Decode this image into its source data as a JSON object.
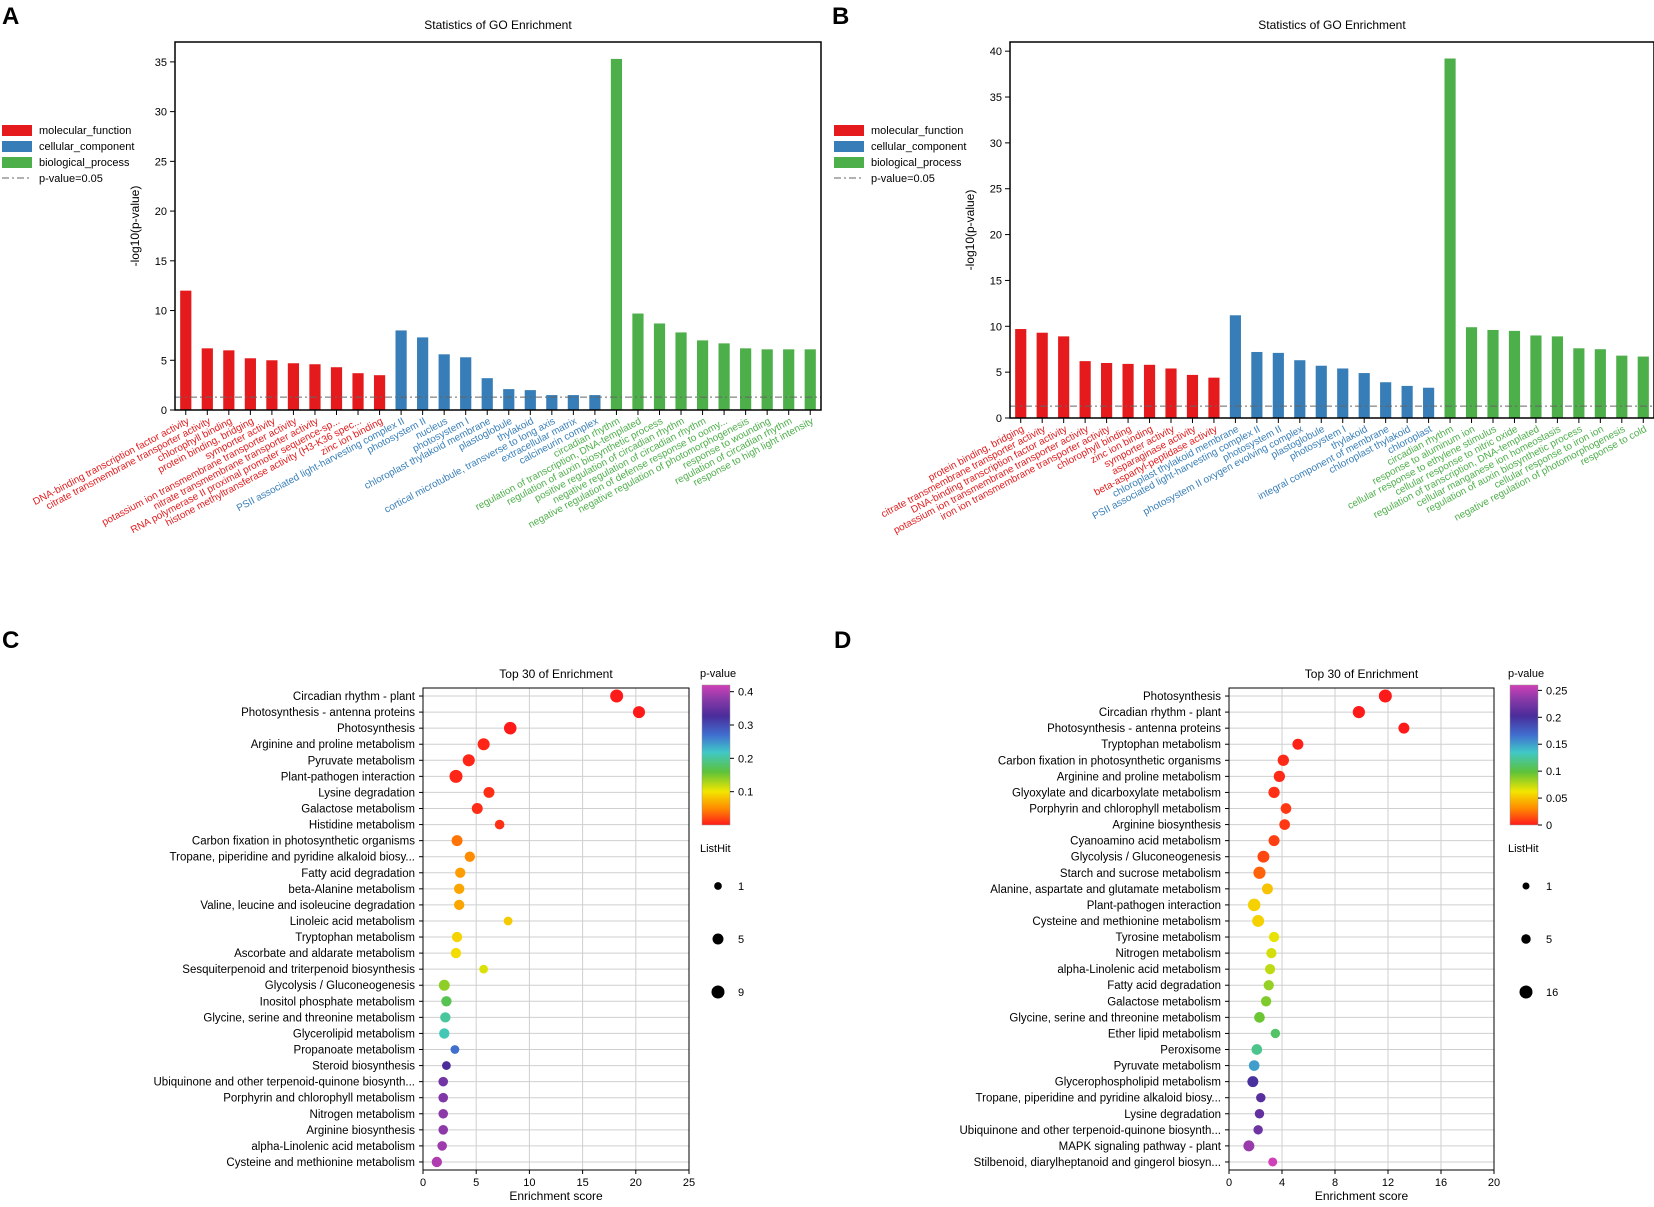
{
  "chart_data": [
    {
      "panel": "A",
      "type": "bar",
      "title": "Statistics of GO Enrichment",
      "ylabel": "-log10(p-value)",
      "ylim": [
        0,
        37
      ],
      "yticks": [
        0,
        5,
        10,
        15,
        20,
        25,
        30,
        35
      ],
      "threshold": 1.3,
      "legend": [
        {
          "label": "molecular_function",
          "color": "#e41a1c"
        },
        {
          "label": "cellular_component",
          "color": "#377eb8"
        },
        {
          "label": "biological_process",
          "color": "#4daf4a"
        },
        {
          "label": "p-value=0.05",
          "color": "#555555",
          "dash": true
        }
      ],
      "bars": [
        {
          "label": "DNA-binding transcription factor activity",
          "value": 12.0,
          "group": 0
        },
        {
          "label": "citrate transmembrane transporter activity",
          "value": 6.2,
          "group": 0
        },
        {
          "label": "chlorophyll binding",
          "value": 6.0,
          "group": 0
        },
        {
          "label": "protein binding, bridging",
          "value": 5.2,
          "group": 0
        },
        {
          "label": "symporter activity",
          "value": 5.0,
          "group": 0
        },
        {
          "label": "potassium ion transmembrane transporter activity",
          "value": 4.7,
          "group": 0
        },
        {
          "label": "nitrate transmembrane transporter activity",
          "value": 4.6,
          "group": 0
        },
        {
          "label": "RNA polymerase II proximal promoter sequence-sp...",
          "value": 4.3,
          "group": 0
        },
        {
          "label": "histone methyltransferase activity (H3-K36 spec...",
          "value": 3.7,
          "group": 0
        },
        {
          "label": "zinc ion binding",
          "value": 3.5,
          "group": 0
        },
        {
          "label": "PSII associated light-harvesting complex II",
          "value": 8.0,
          "group": 1
        },
        {
          "label": "photosystem II",
          "value": 7.3,
          "group": 1
        },
        {
          "label": "nucleus",
          "value": 5.6,
          "group": 1
        },
        {
          "label": "photosystem I",
          "value": 5.3,
          "group": 1
        },
        {
          "label": "chloroplast thylakoid membrane",
          "value": 3.2,
          "group": 1
        },
        {
          "label": "plastoglobule",
          "value": 2.1,
          "group": 1
        },
        {
          "label": "thylakoid",
          "value": 2.0,
          "group": 1
        },
        {
          "label": "cortical microtubule, transverse to long axis",
          "value": 1.5,
          "group": 1
        },
        {
          "label": "extracellular matrix",
          "value": 1.5,
          "group": 1
        },
        {
          "label": "calcineurin complex",
          "value": 1.5,
          "group": 1
        },
        {
          "label": "circadian rhythm",
          "value": 35.3,
          "group": 2
        },
        {
          "label": "regulation of transcription, DNA-templated",
          "value": 9.7,
          "group": 2
        },
        {
          "label": "regulation of auxin biosynthetic process",
          "value": 8.7,
          "group": 2
        },
        {
          "label": "positive regulation of circadian rhythm",
          "value": 7.8,
          "group": 2
        },
        {
          "label": "negative regulation of circadian rhythm",
          "value": 7.0,
          "group": 2
        },
        {
          "label": "negative regulation of defense response to oomy...",
          "value": 6.7,
          "group": 2
        },
        {
          "label": "negative regulation of photomorphogenesis",
          "value": 6.2,
          "group": 2
        },
        {
          "label": "response to wounding",
          "value": 6.1,
          "group": 2
        },
        {
          "label": "regulation of circadian rhythm",
          "value": 6.1,
          "group": 2
        },
        {
          "label": "response to high light intensity",
          "value": 6.1,
          "group": 2
        }
      ]
    },
    {
      "panel": "B",
      "type": "bar",
      "title": "Statistics of GO Enrichment",
      "ylabel": "-log10(p-value)",
      "ylim": [
        0,
        41
      ],
      "yticks": [
        0,
        5,
        10,
        15,
        20,
        25,
        30,
        35,
        40
      ],
      "threshold": 1.3,
      "legend": [
        {
          "label": "molecular_function",
          "color": "#e41a1c"
        },
        {
          "label": "cellular_component",
          "color": "#377eb8"
        },
        {
          "label": "biological_process",
          "color": "#4daf4a"
        },
        {
          "label": "p-value=0.05",
          "color": "#555555",
          "dash": true
        }
      ],
      "bars": [
        {
          "label": "protein binding, bridging",
          "value": 9.7,
          "group": 0
        },
        {
          "label": "citrate transmembrane transporter activity",
          "value": 9.3,
          "group": 0
        },
        {
          "label": "DNA-binding transcription factor activity",
          "value": 8.9,
          "group": 0
        },
        {
          "label": "potassium ion transmembrane transporter activity",
          "value": 6.2,
          "group": 0
        },
        {
          "label": "iron ion transmembrane transporter activity",
          "value": 6.0,
          "group": 0
        },
        {
          "label": "chlorophyll binding",
          "value": 5.9,
          "group": 0
        },
        {
          "label": "zinc ion binding",
          "value": 5.8,
          "group": 0
        },
        {
          "label": "symporter activity",
          "value": 5.4,
          "group": 0
        },
        {
          "label": "asparaginase activity",
          "value": 4.7,
          "group": 0
        },
        {
          "label": "beta-aspartyl-peptidase activity",
          "value": 4.4,
          "group": 0
        },
        {
          "label": "chloroplast thylakoid membrane",
          "value": 11.2,
          "group": 1
        },
        {
          "label": "PSII associated light-harvesting complex II",
          "value": 7.2,
          "group": 1
        },
        {
          "label": "photosystem II",
          "value": 7.1,
          "group": 1
        },
        {
          "label": "photosystem II oxygen evolving complex",
          "value": 6.3,
          "group": 1
        },
        {
          "label": "plastoglobule",
          "value": 5.7,
          "group": 1
        },
        {
          "label": "photosystem I",
          "value": 5.4,
          "group": 1
        },
        {
          "label": "thylakoid",
          "value": 4.9,
          "group": 1
        },
        {
          "label": "integral component of membrane",
          "value": 3.9,
          "group": 1
        },
        {
          "label": "chloroplast thylakoid",
          "value": 3.5,
          "group": 1
        },
        {
          "label": "chloroplast",
          "value": 3.3,
          "group": 1
        },
        {
          "label": "circadian rhythm",
          "value": 39.2,
          "group": 2
        },
        {
          "label": "response to aluminum ion",
          "value": 9.9,
          "group": 2
        },
        {
          "label": "cellular response to ethylene stimulus",
          "value": 9.6,
          "group": 2
        },
        {
          "label": "cellular response to nitric oxide",
          "value": 9.5,
          "group": 2
        },
        {
          "label": "regulation of transcription, DNA-templated",
          "value": 9.0,
          "group": 2
        },
        {
          "label": "cellular manganese ion homeostasis",
          "value": 8.9,
          "group": 2
        },
        {
          "label": "regulation of auxin biosynthetic process",
          "value": 7.6,
          "group": 2
        },
        {
          "label": "cellular response to iron ion",
          "value": 7.5,
          "group": 2
        },
        {
          "label": "negative regulation of photomorphogenesis",
          "value": 6.8,
          "group": 2
        },
        {
          "label": "response to cold",
          "value": 6.7,
          "group": 2
        }
      ]
    },
    {
      "panel": "C",
      "type": "scatter",
      "title": "Top 30 of  Enrichment",
      "xlabel": "Enrichment  score",
      "xlim": [
        0,
        25
      ],
      "xticks": [
        0,
        5,
        10,
        15,
        20,
        25
      ],
      "colorbar": {
        "title": "p-value",
        "min": 0,
        "max": 0.42,
        "ticks": [
          0.1,
          0.2,
          0.3,
          0.4
        ],
        "tick_labels": [
          "0.1",
          "0.2",
          "0.3",
          "0.4"
        ]
      },
      "size_legend": {
        "title": "ListHit",
        "values": [
          1,
          5,
          9
        ],
        "max": 9
      },
      "points": [
        {
          "term": "Circadian rhythm - plant",
          "x": 18.2,
          "p": 0.0,
          "hit": 9
        },
        {
          "term": "Photosynthesis - antenna proteins",
          "x": 20.3,
          "p": 0.0,
          "hit": 7
        },
        {
          "term": "Photosynthesis",
          "x": 8.2,
          "p": 0.0,
          "hit": 8
        },
        {
          "term": "Arginine and proline metabolism",
          "x": 5.7,
          "p": 0.005,
          "hit": 7
        },
        {
          "term": "Pyruvate metabolism",
          "x": 4.3,
          "p": 0.005,
          "hit": 7
        },
        {
          "term": "Plant-pathogen interaction",
          "x": 3.1,
          "p": 0.005,
          "hit": 9
        },
        {
          "term": "Lysine degradation",
          "x": 6.2,
          "p": 0.008,
          "hit": 5
        },
        {
          "term": "Galactose metabolism",
          "x": 5.1,
          "p": 0.008,
          "hit": 5
        },
        {
          "term": "Histidine metabolism",
          "x": 7.2,
          "p": 0.01,
          "hit": 3
        },
        {
          "term": "Carbon fixation in photosynthetic organisms",
          "x": 3.2,
          "p": 0.04,
          "hit": 5
        },
        {
          "term": "Tropane, piperidine and pyridine alkaloid biosy...",
          "x": 4.4,
          "p": 0.05,
          "hit": 4
        },
        {
          "term": "Fatty acid degradation",
          "x": 3.5,
          "p": 0.06,
          "hit": 4
        },
        {
          "term": "beta-Alanine metabolism",
          "x": 3.4,
          "p": 0.065,
          "hit": 4
        },
        {
          "term": "Valine, leucine and isoleucine degradation",
          "x": 3.4,
          "p": 0.065,
          "hit": 4
        },
        {
          "term": "Linoleic acid metabolism",
          "x": 8.0,
          "p": 0.085,
          "hit": 2
        },
        {
          "term": "Tryptophan metabolism",
          "x": 3.2,
          "p": 0.09,
          "hit": 4
        },
        {
          "term": "Ascorbate and aldarate metabolism",
          "x": 3.1,
          "p": 0.095,
          "hit": 4
        },
        {
          "term": "Sesquiterpenoid and triterpenoid biosynthesis",
          "x": 5.7,
          "p": 0.11,
          "hit": 2
        },
        {
          "term": "Glycolysis / Gluconeogenesis",
          "x": 2.0,
          "p": 0.14,
          "hit": 5
        },
        {
          "term": "Inositol phosphate metabolism",
          "x": 2.2,
          "p": 0.17,
          "hit": 4
        },
        {
          "term": "Glycine, serine and threonine metabolism",
          "x": 2.1,
          "p": 0.2,
          "hit": 4
        },
        {
          "term": "Glycerolipid metabolism",
          "x": 2.0,
          "p": 0.21,
          "hit": 4
        },
        {
          "term": "Propanoate metabolism",
          "x": 3.0,
          "p": 0.27,
          "hit": 2
        },
        {
          "term": "Steroid biosynthesis",
          "x": 2.2,
          "p": 0.33,
          "hit": 2
        },
        {
          "term": "Ubiquinone and other terpenoid-quinone biosynth...",
          "x": 1.9,
          "p": 0.36,
          "hit": 3
        },
        {
          "term": "Porphyrin and chlorophyll metabolism",
          "x": 1.9,
          "p": 0.37,
          "hit": 3
        },
        {
          "term": "Nitrogen metabolism",
          "x": 1.9,
          "p": 0.38,
          "hit": 3
        },
        {
          "term": "Arginine biosynthesis",
          "x": 1.9,
          "p": 0.38,
          "hit": 3
        },
        {
          "term": "alpha-Linolenic acid metabolism",
          "x": 1.8,
          "p": 0.39,
          "hit": 3
        },
        {
          "term": "Cysteine and methionine metabolism",
          "x": 1.3,
          "p": 0.4,
          "hit": 4
        }
      ]
    },
    {
      "panel": "D",
      "type": "scatter",
      "title": "Top 30 of  Enrichment",
      "xlabel": "Enrichment  score",
      "xlim": [
        0,
        20
      ],
      "xticks": [
        0,
        4,
        8,
        12,
        16,
        20
      ],
      "colorbar": {
        "title": "p-value",
        "min": 0,
        "max": 0.26,
        "ticks": [
          0,
          0.05,
          0.1,
          0.15,
          0.2,
          0.25
        ],
        "tick_labels": [
          "0",
          "0.05",
          "0.1",
          "0.15",
          "0.2",
          "0.25"
        ]
      },
      "size_legend": {
        "title": "ListHit",
        "values": [
          1,
          5,
          16
        ],
        "max": 16
      },
      "points": [
        {
          "term": "Photosynthesis",
          "x": 11.8,
          "p": 0.0,
          "hit": 16
        },
        {
          "term": "Circadian rhythm - plant",
          "x": 9.8,
          "p": 0.0,
          "hit": 13
        },
        {
          "term": "Photosynthesis - antenna proteins",
          "x": 13.2,
          "p": 0.0,
          "hit": 9
        },
        {
          "term": "Tryptophan metabolism",
          "x": 5.2,
          "p": 0.002,
          "hit": 9
        },
        {
          "term": "Carbon fixation in photosynthetic organisms",
          "x": 4.1,
          "p": 0.004,
          "hit": 10
        },
        {
          "term": "Arginine and proline metabolism",
          "x": 3.8,
          "p": 0.004,
          "hit": 10
        },
        {
          "term": "Glyoxylate and dicarboxylate metabolism",
          "x": 3.4,
          "p": 0.006,
          "hit": 10
        },
        {
          "term": "Porphyrin and chlorophyll metabolism",
          "x": 4.3,
          "p": 0.008,
          "hit": 8
        },
        {
          "term": "Arginine biosynthesis",
          "x": 4.2,
          "p": 0.008,
          "hit": 8
        },
        {
          "term": "Cyanoamino acid metabolism",
          "x": 3.4,
          "p": 0.01,
          "hit": 9
        },
        {
          "term": "Glycolysis / Gluconeogenesis",
          "x": 2.6,
          "p": 0.012,
          "hit": 12
        },
        {
          "term": "Starch and sucrose metabolism",
          "x": 2.3,
          "p": 0.02,
          "hit": 13
        },
        {
          "term": "Alanine, aspartate and glutamate metabolism",
          "x": 2.9,
          "p": 0.05,
          "hit": 9
        },
        {
          "term": "Plant-pathogen interaction",
          "x": 1.9,
          "p": 0.055,
          "hit": 14
        },
        {
          "term": "Cysteine and methionine metabolism",
          "x": 2.2,
          "p": 0.055,
          "hit": 12
        },
        {
          "term": "Tyrosine metabolism",
          "x": 3.4,
          "p": 0.065,
          "hit": 7
        },
        {
          "term": "Nitrogen metabolism",
          "x": 3.2,
          "p": 0.07,
          "hit": 7
        },
        {
          "term": "alpha-Linolenic acid metabolism",
          "x": 3.1,
          "p": 0.075,
          "hit": 7
        },
        {
          "term": "Fatty acid degradation",
          "x": 3.0,
          "p": 0.085,
          "hit": 7
        },
        {
          "term": "Galactose metabolism",
          "x": 2.8,
          "p": 0.09,
          "hit": 7
        },
        {
          "term": "Glycine, serine and threonine metabolism",
          "x": 2.3,
          "p": 0.095,
          "hit": 8
        },
        {
          "term": "Ether lipid metabolism",
          "x": 3.5,
          "p": 0.11,
          "hit": 5
        },
        {
          "term": "Peroxisome",
          "x": 2.1,
          "p": 0.12,
          "hit": 8
        },
        {
          "term": "Pyruvate metabolism",
          "x": 1.9,
          "p": 0.15,
          "hit": 8
        },
        {
          "term": "Glycerophospholipid metabolism",
          "x": 1.8,
          "p": 0.2,
          "hit": 9
        },
        {
          "term": "Tropane, piperidine and pyridine alkaloid biosy...",
          "x": 2.4,
          "p": 0.21,
          "hit": 5
        },
        {
          "term": "Lysine degradation",
          "x": 2.3,
          "p": 0.215,
          "hit": 5
        },
        {
          "term": "Ubiquinone and other terpenoid-quinone biosynth...",
          "x": 2.2,
          "p": 0.22,
          "hit": 5
        },
        {
          "term": "MAPK signaling pathway - plant",
          "x": 1.5,
          "p": 0.24,
          "hit": 9
        },
        {
          "term": "Stilbenoid, diarylheptanoid and gingerol biosyn...",
          "x": 3.3,
          "p": 0.26,
          "hit": 4
        }
      ]
    }
  ]
}
